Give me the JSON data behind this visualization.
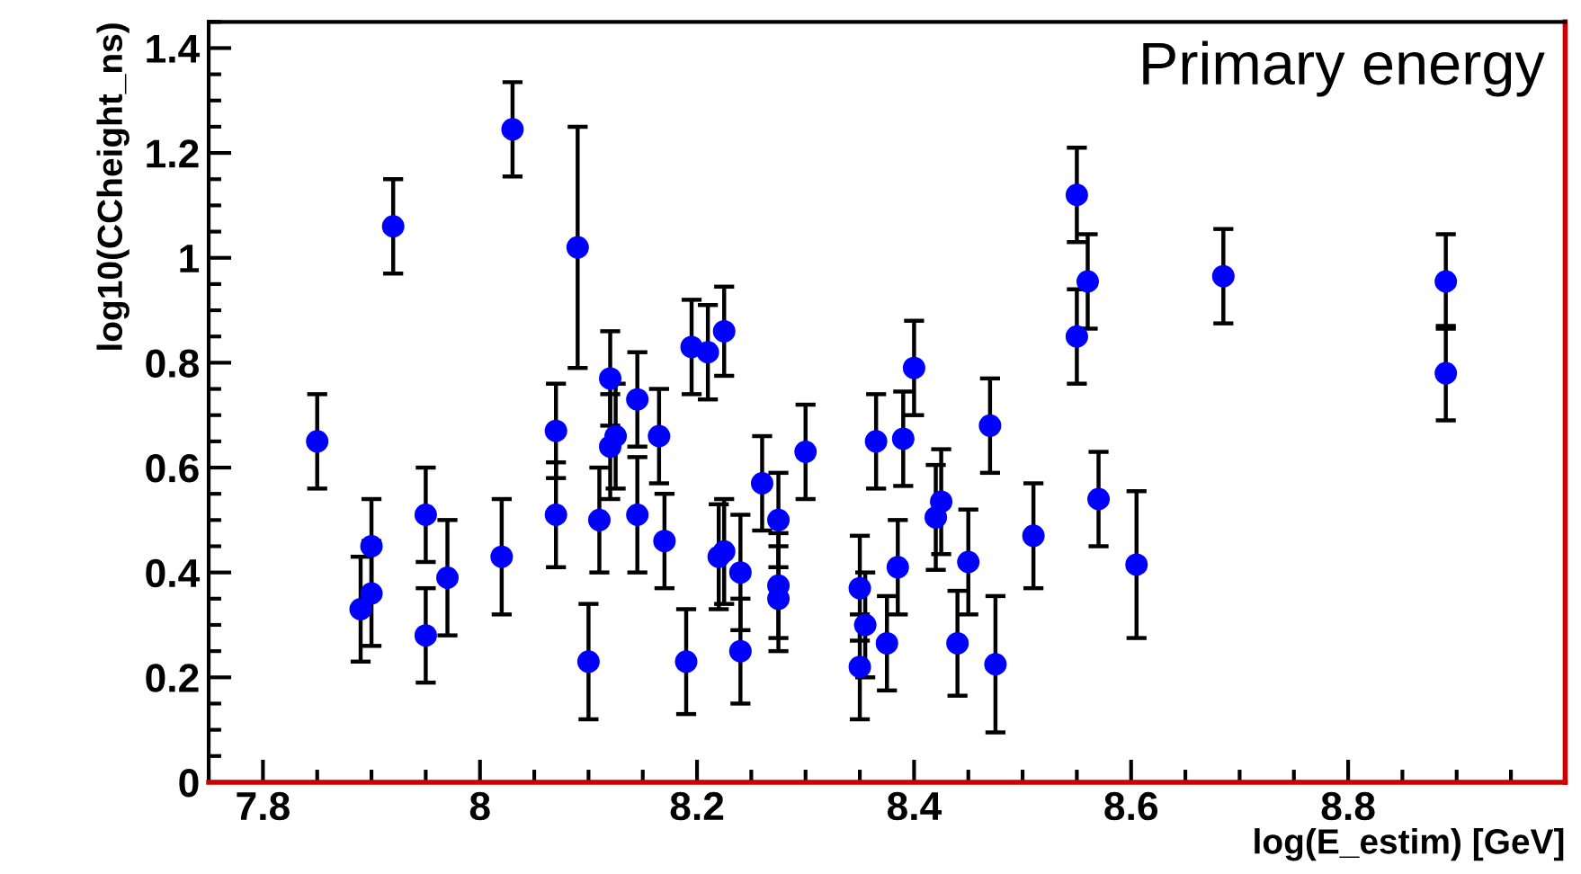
{
  "chart_data": {
    "type": "scatter",
    "title": "Primary energy",
    "xlabel": "log(E_estim) [GeV]",
    "ylabel": "log10(CCheight_ns)",
    "xlim": [
      7.75,
      9.0
    ],
    "xticks": [
      7.8,
      8,
      8.2,
      8.4,
      8.6,
      8.8
    ],
    "ylim": [
      0,
      1.45
    ],
    "yticks": [
      0,
      0.2,
      0.4,
      0.6,
      0.8,
      1,
      1.2,
      1.4
    ],
    "marker": "circle",
    "grid": false,
    "legend": false,
    "series": [
      {
        "color": "#0000ff",
        "x": [
          7.85,
          7.89,
          7.9,
          7.9,
          7.92,
          7.95,
          7.95,
          7.97,
          8.02,
          8.03,
          8.07,
          8.07,
          8.09,
          8.1,
          8.12,
          8.12,
          8.125,
          8.11,
          8.145,
          8.145,
          8.165,
          8.17,
          8.19,
          8.195,
          8.21,
          8.225,
          8.22,
          8.225,
          8.24,
          8.24,
          8.26,
          8.275,
          8.275,
          8.275,
          8.3,
          8.35,
          8.355,
          8.35,
          8.365,
          8.375,
          8.385,
          8.39,
          8.4,
          8.42,
          8.425,
          8.44,
          8.45,
          8.47,
          8.475,
          8.51,
          8.55,
          8.55,
          8.56,
          8.57,
          8.605,
          8.685,
          8.89,
          8.89
        ],
        "values": [
          0.65,
          0.33,
          0.36,
          0.45,
          1.06,
          0.51,
          0.28,
          0.39,
          0.43,
          1.245,
          0.51,
          0.67,
          1.02,
          0.23,
          0.77,
          0.64,
          0.66,
          0.5,
          0.73,
          0.51,
          0.66,
          0.46,
          0.23,
          0.83,
          0.82,
          0.86,
          0.43,
          0.44,
          0.4,
          0.25,
          0.57,
          0.5,
          0.375,
          0.35,
          0.63,
          0.37,
          0.3,
          0.22,
          0.65,
          0.265,
          0.41,
          0.655,
          0.79,
          0.505,
          0.535,
          0.265,
          0.42,
          0.68,
          0.225,
          0.47,
          1.12,
          0.85,
          0.955,
          0.54,
          0.415,
          0.965,
          0.955,
          0.78
        ],
        "errors": [
          0.09,
          0.1,
          0.1,
          0.09,
          0.09,
          0.09,
          0.09,
          0.11,
          0.11,
          0.09,
          0.1,
          0.09,
          0.23,
          0.11,
          0.09,
          0.1,
          0.1,
          0.1,
          0.09,
          0.11,
          0.09,
          0.09,
          0.1,
          0.09,
          0.09,
          0.085,
          0.1,
          0.1,
          0.11,
          0.1,
          0.09,
          0.09,
          0.1,
          0.1,
          0.09,
          0.1,
          0.1,
          0.1,
          0.09,
          0.09,
          0.09,
          0.09,
          0.09,
          0.1,
          0.1,
          0.1,
          0.1,
          0.09,
          0.13,
          0.1,
          0.09,
          0.09,
          0.09,
          0.09,
          0.14,
          0.09,
          0.09,
          0.09
        ]
      }
    ]
  }
}
